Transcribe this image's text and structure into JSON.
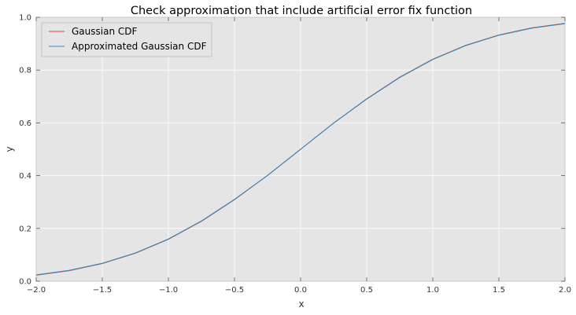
{
  "chart_data": {
    "type": "line",
    "title": "Check approximation that include artificial error fix function",
    "xlabel": "x",
    "ylabel": "y",
    "xlim": [
      -2.0,
      2.0
    ],
    "ylim": [
      0.0,
      1.0
    ],
    "grid": true,
    "legend_position": "top-left",
    "x_ticks": [
      -2.0,
      -1.5,
      -1.0,
      -0.5,
      0.0,
      0.5,
      1.0,
      1.5,
      2.0
    ],
    "x_tick_labels": [
      "−2.0",
      "−1.5",
      "−1.0",
      "−0.5",
      "0.0",
      "0.5",
      "1.0",
      "1.5",
      "2.0"
    ],
    "y_ticks": [
      0.0,
      0.2,
      0.4,
      0.6,
      0.8,
      1.0
    ],
    "y_tick_labels": [
      "0.0",
      "0.2",
      "0.4",
      "0.6",
      "0.8",
      "1.0"
    ],
    "x": [
      -2.0,
      -1.75,
      -1.5,
      -1.25,
      -1.0,
      -0.75,
      -0.5,
      -0.25,
      0.0,
      0.25,
      0.5,
      0.75,
      1.0,
      1.25,
      1.5,
      1.75,
      2.0
    ],
    "series": [
      {
        "name": "Gaussian CDF",
        "color": "#e24a33",
        "values": [
          0.023,
          0.04,
          0.067,
          0.106,
          0.159,
          0.227,
          0.309,
          0.401,
          0.5,
          0.599,
          0.691,
          0.773,
          0.841,
          0.894,
          0.933,
          0.96,
          0.977
        ]
      },
      {
        "name": "Approximated Gaussian CDF",
        "color": "#348abd",
        "values": [
          0.024,
          0.041,
          0.068,
          0.107,
          0.16,
          0.228,
          0.31,
          0.401,
          0.5,
          0.599,
          0.69,
          0.772,
          0.84,
          0.893,
          0.932,
          0.959,
          0.976
        ]
      }
    ]
  },
  "style": {
    "plot_background": "#e5e5e5",
    "grid_color": "#ffffff"
  }
}
